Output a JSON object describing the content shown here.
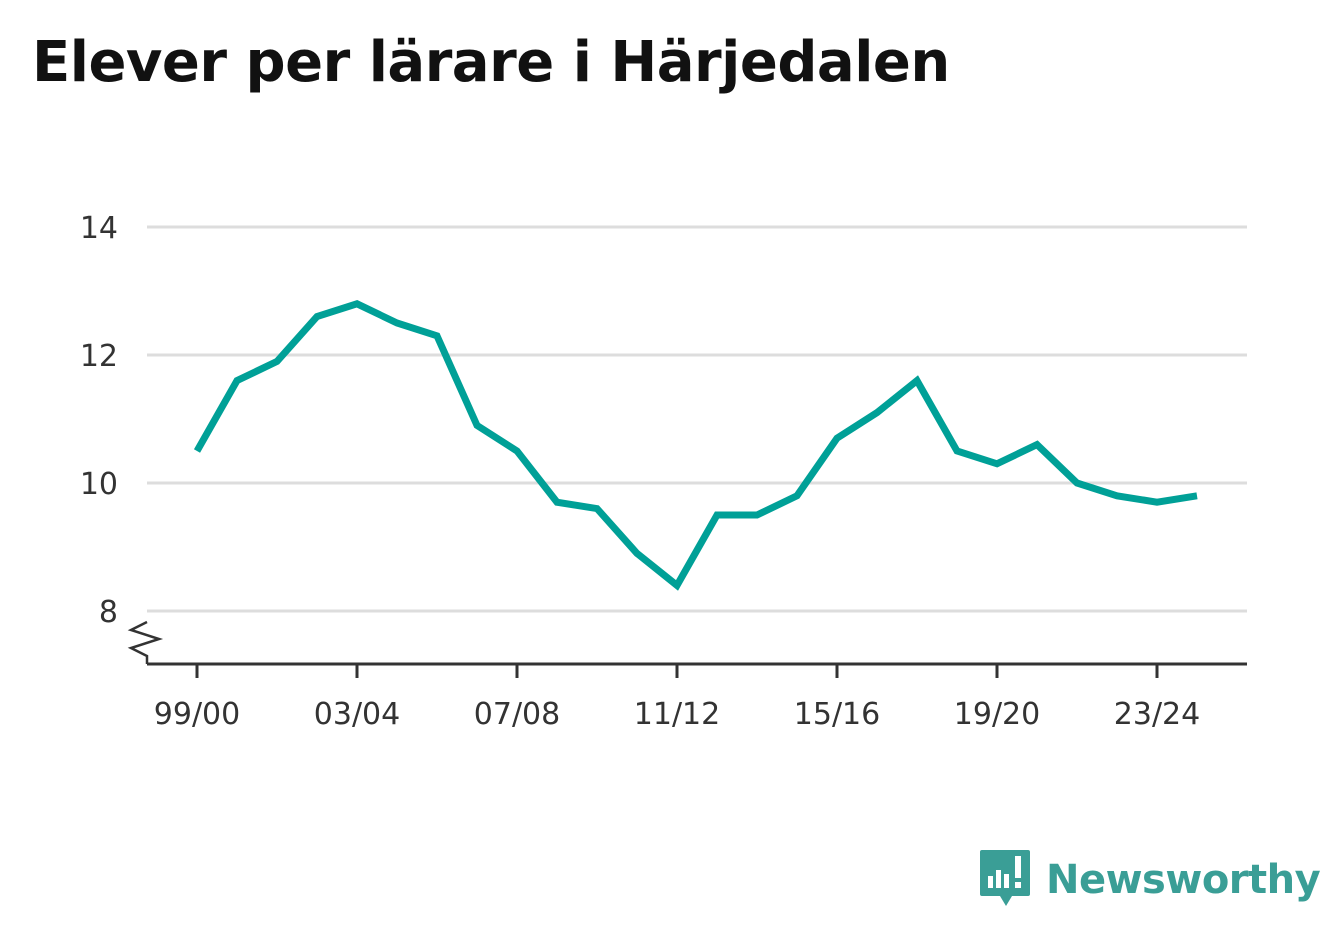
{
  "chart_data": {
    "type": "line",
    "title": "Elever per lärare i Härjedalen",
    "x": [
      "99/00",
      "00/01",
      "01/02",
      "02/03",
      "03/04",
      "04/05",
      "05/06",
      "06/07",
      "07/08",
      "08/09",
      "09/10",
      "10/11",
      "11/12",
      "12/13",
      "13/14",
      "14/15",
      "15/16",
      "16/17",
      "17/18",
      "18/19",
      "19/20",
      "20/21",
      "21/22",
      "22/23",
      "23/24",
      "24/25"
    ],
    "x_tick_labels": [
      "99/00",
      "03/04",
      "07/08",
      "11/12",
      "15/16",
      "19/20",
      "23/24"
    ],
    "series": [
      {
        "values": [
          10.5,
          11.6,
          11.9,
          12.6,
          12.8,
          12.5,
          12.3,
          10.9,
          10.5,
          9.7,
          9.6,
          8.9,
          8.4,
          9.5,
          9.5,
          9.8,
          10.7,
          11.1,
          11.6,
          10.5,
          10.3,
          10.6,
          10.0,
          9.8,
          9.7,
          9.8
        ],
        "color": "#00a097"
      }
    ],
    "y_ticks": [
      8,
      10,
      12,
      14
    ],
    "ylim": [
      8,
      14
    ],
    "axis_break": true,
    "grid": true,
    "xlabel": "",
    "ylabel": ""
  },
  "colors": {
    "line": "#00a097",
    "grid": "#dddddd",
    "axis": "#333333",
    "brand": "#3a9e96"
  },
  "brand": {
    "name": "Newsworthy",
    "icon": "newsworthy-logo-icon"
  }
}
